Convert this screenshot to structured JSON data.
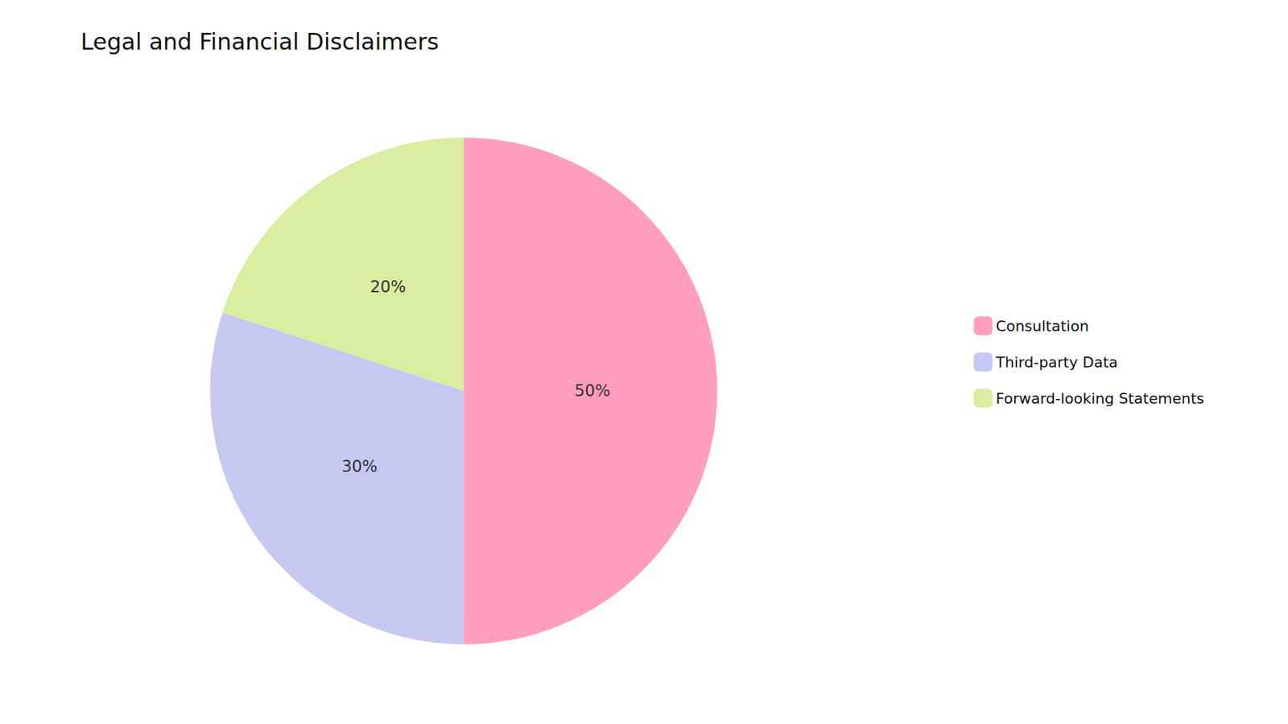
{
  "chart_data": {
    "type": "pie",
    "title": "Legal and Financial Disclaimers",
    "categories": [
      "Consultation",
      "Third-party Data",
      "Forward-looking Statements"
    ],
    "values": [
      50,
      30,
      20
    ],
    "value_labels": [
      "50%",
      "30%",
      "20%"
    ],
    "colors": [
      "#FF9DC0",
      "#C5C8F0",
      "#D8EDA0"
    ],
    "legend": "right",
    "data_labels": true
  }
}
